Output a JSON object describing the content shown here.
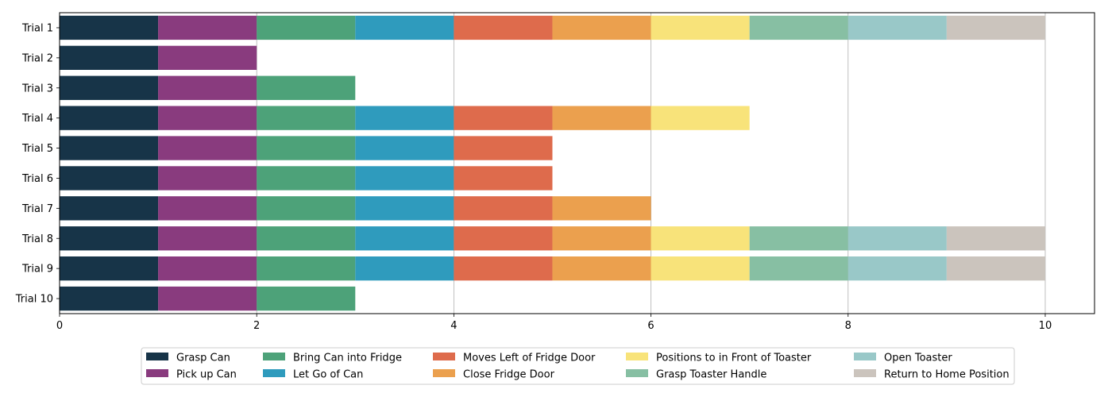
{
  "chart_data": {
    "type": "bar",
    "orientation": "horizontal",
    "stacked": true,
    "categories": [
      "Trial 1",
      "Trial 2",
      "Trial 3",
      "Trial 4",
      "Trial 5",
      "Trial 6",
      "Trial 7",
      "Trial 8",
      "Trial 9",
      "Trial 10"
    ],
    "steps_completed": [
      10,
      2,
      3,
      7,
      5,
      5,
      6,
      10,
      10,
      3
    ],
    "series": [
      {
        "name": "Grasp Can",
        "color": "#173448"
      },
      {
        "name": "Pick up Can",
        "color": "#893b7e"
      },
      {
        "name": "Bring Can into Fridge",
        "color": "#4da279"
      },
      {
        "name": "Let Go of Can",
        "color": "#2f9bbd"
      },
      {
        "name": "Moves Left of Fridge Door",
        "color": "#de6b4c"
      },
      {
        "name": "Close Fridge Door",
        "color": "#eba04e"
      },
      {
        "name": "Positions to in Front of Toaster",
        "color": "#f8e37a"
      },
      {
        "name": "Grasp Toaster Handle",
        "color": "#87bfa3"
      },
      {
        "name": "Open Toaster",
        "color": "#99c8c8"
      },
      {
        "name": "Return to Home Position",
        "color": "#cbc4bd"
      }
    ],
    "segment_value": 1,
    "title": "",
    "xlabel": "",
    "ylabel": "",
    "xlim": [
      0,
      10.5
    ],
    "x_ticks": [
      "0",
      "2",
      "4",
      "6",
      "8",
      "10"
    ],
    "grid": "x",
    "legend_position": "bottom-center"
  }
}
